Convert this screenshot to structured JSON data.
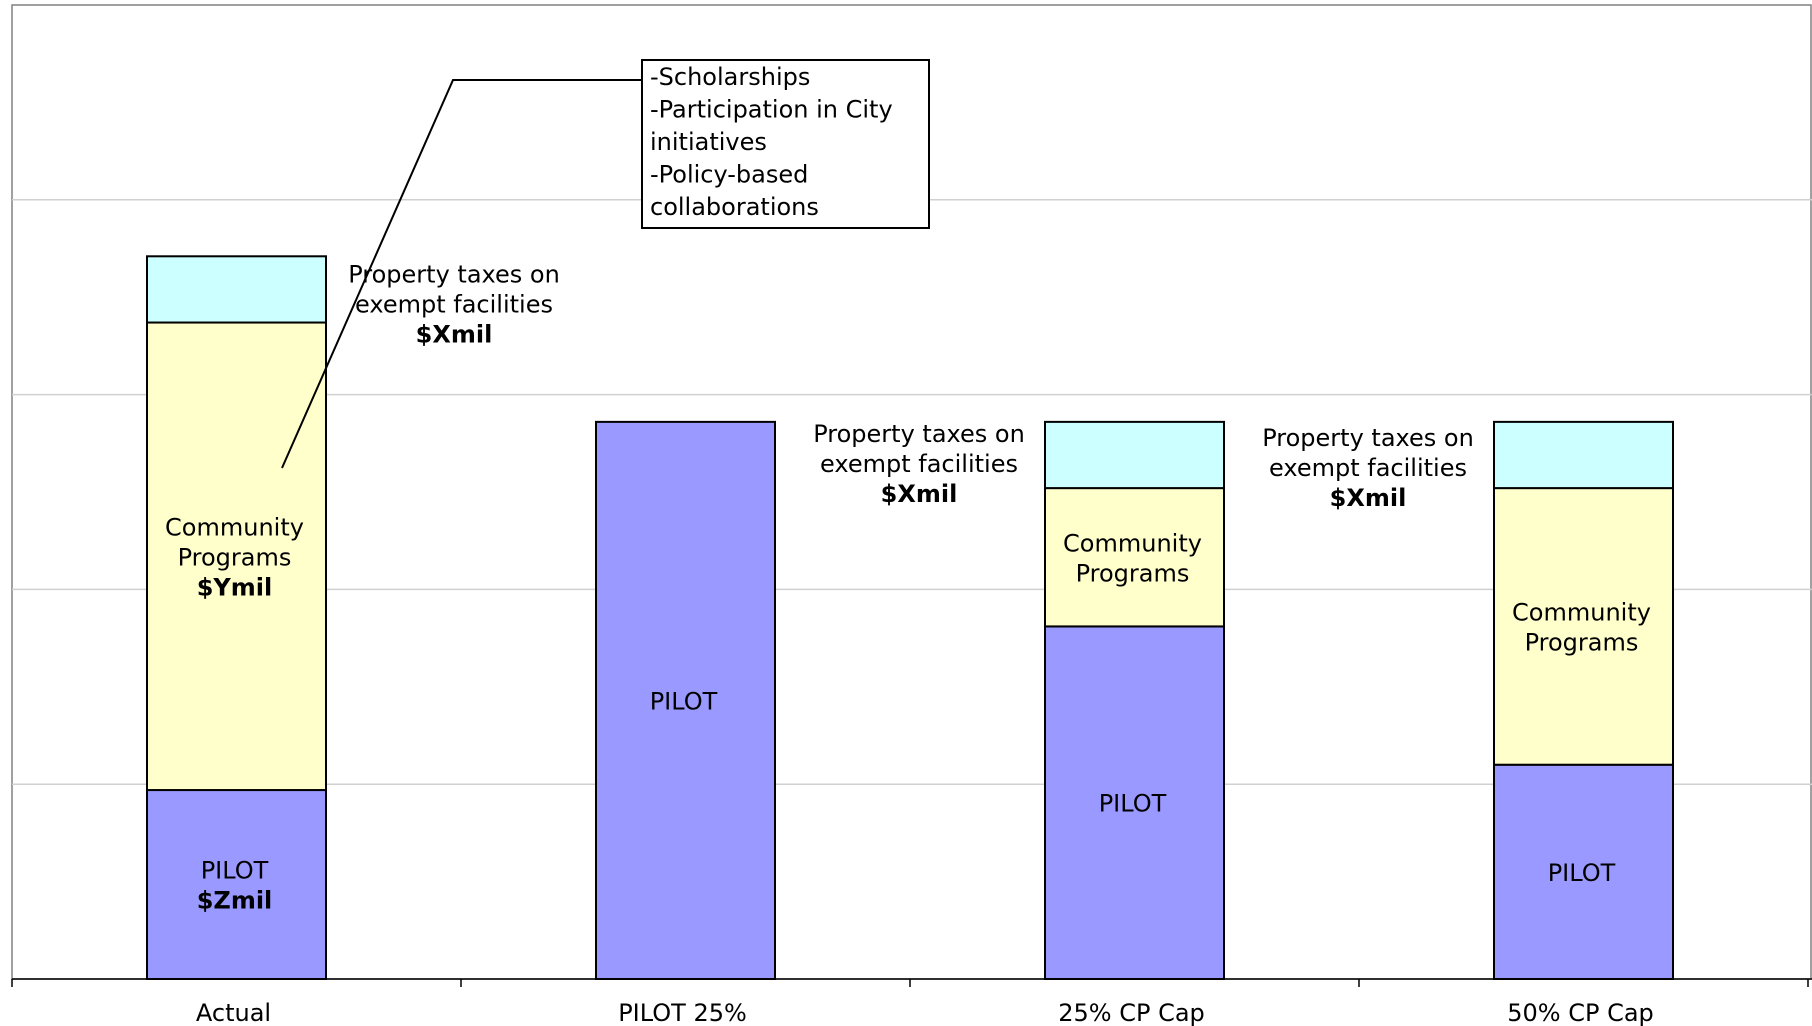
{
  "chart_data": {
    "type": "bar",
    "stacked": true,
    "categories": [
      "Actual",
      "PILOT 25%",
      "25% CP Cap",
      "50% CP Cap"
    ],
    "grid": true,
    "ylim": [
      0,
      5
    ],
    "series": [
      {
        "name": "PILOT",
        "color": "#9999ff",
        "values": [
          0.97,
          2.86,
          1.81,
          1.1
        ]
      },
      {
        "name": "Community Programs",
        "color": "#ffffcc",
        "values": [
          2.4,
          0,
          0.71,
          1.42
        ]
      },
      {
        "name": "Property taxes on exempt facilities",
        "color": "#ccffff",
        "values": [
          0.34,
          0,
          0.34,
          0.34
        ]
      }
    ],
    "segment_labels": [
      {
        "category": 0,
        "series": 0,
        "lines": [
          "PILOT",
          "$Zmil"
        ]
      },
      {
        "category": 0,
        "series": 1,
        "lines": [
          "Community",
          "Programs",
          "$Ymil"
        ]
      },
      {
        "category": 1,
        "series": 0,
        "lines": [
          "PILOT"
        ]
      },
      {
        "category": 2,
        "series": 0,
        "lines": [
          "PILOT"
        ]
      },
      {
        "category": 2,
        "series": 1,
        "lines": [
          "Community",
          "Programs"
        ]
      },
      {
        "category": 3,
        "series": 0,
        "lines": [
          "PILOT"
        ]
      },
      {
        "category": 3,
        "series": 1,
        "lines": [
          "Community",
          "Programs"
        ]
      }
    ],
    "tax_labels": [
      {
        "category": 0,
        "lines": [
          "Property taxes on",
          "exempt facilities",
          "$Xmil"
        ]
      },
      {
        "category": 2,
        "lines": [
          "Property taxes on",
          "exempt facilities",
          "$Xmil"
        ]
      },
      {
        "category": 3,
        "lines": [
          "Property taxes on",
          "exempt facilities",
          "$Xmil"
        ]
      }
    ],
    "callout": {
      "lines": [
        "-Scholarships",
        "-Participation in City",
        "initiatives",
        "-Policy-based",
        "collaborations"
      ]
    }
  }
}
